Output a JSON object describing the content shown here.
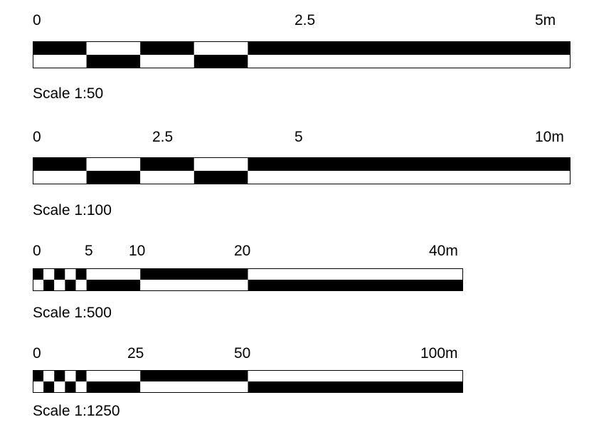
{
  "scales": [
    {
      "caption": "Scale 1:50",
      "ticks": [
        {
          "pos": 0,
          "text": "0"
        },
        {
          "pos": 2.5,
          "text": "2.5"
        },
        {
          "pos": 5,
          "text": "5m"
        }
      ],
      "total": 5,
      "pattern": [
        {
          "from": 0,
          "to": 0.5,
          "top": "black"
        },
        {
          "from": 0.5,
          "to": 1.0,
          "top": "white"
        },
        {
          "from": 1.0,
          "to": 1.5,
          "top": "black"
        },
        {
          "from": 1.5,
          "to": 2.0,
          "top": "white"
        },
        {
          "from": 2.0,
          "to": 2.5,
          "top": "black"
        },
        {
          "from": 2.5,
          "to": 5.0,
          "top": "black"
        }
      ]
    },
    {
      "caption": "Scale 1:100",
      "ticks": [
        {
          "pos": 0,
          "text": "0"
        },
        {
          "pos": 2.5,
          "text": "2.5"
        },
        {
          "pos": 5,
          "text": "5"
        },
        {
          "pos": 10,
          "text": "10m"
        }
      ],
      "total": 10,
      "pattern": [
        {
          "from": 0,
          "to": 1,
          "top": "black"
        },
        {
          "from": 1,
          "to": 2,
          "top": "white"
        },
        {
          "from": 2,
          "to": 3,
          "top": "black"
        },
        {
          "from": 3,
          "to": 4,
          "top": "white"
        },
        {
          "from": 4,
          "to": 5,
          "top": "black"
        },
        {
          "from": 5,
          "to": 10,
          "top": "black"
        }
      ]
    },
    {
      "caption": "Scale 1:500",
      "ticks": [
        {
          "pos": 0,
          "text": "0"
        },
        {
          "pos": 5,
          "text": "5"
        },
        {
          "pos": 10,
          "text": "10"
        },
        {
          "pos": 20,
          "text": "20"
        },
        {
          "pos": 40,
          "text": "40m"
        }
      ],
      "total": 40,
      "pattern": [
        {
          "from": 0,
          "to": 1,
          "top": "black"
        },
        {
          "from": 1,
          "to": 2,
          "top": "white"
        },
        {
          "from": 2,
          "to": 3,
          "top": "black"
        },
        {
          "from": 3,
          "to": 4,
          "top": "white"
        },
        {
          "from": 4,
          "to": 5,
          "top": "black"
        },
        {
          "from": 5,
          "to": 10,
          "top": "white"
        },
        {
          "from": 10,
          "to": 20,
          "top": "black"
        },
        {
          "from": 20,
          "to": 40,
          "top": "white"
        }
      ]
    },
    {
      "caption": "Scale 1:1250",
      "ticks": [
        {
          "pos": 0,
          "text": "0"
        },
        {
          "pos": 25,
          "text": "25"
        },
        {
          "pos": 50,
          "text": "50"
        },
        {
          "pos": 100,
          "text": "100m"
        }
      ],
      "total": 100,
      "pattern": [
        {
          "from": 0,
          "to": 2.5,
          "top": "black"
        },
        {
          "from": 2.5,
          "to": 5,
          "top": "white"
        },
        {
          "from": 5,
          "to": 7.5,
          "top": "black"
        },
        {
          "from": 7.5,
          "to": 10,
          "top": "white"
        },
        {
          "from": 10,
          "to": 12.5,
          "top": "black"
        },
        {
          "from": 12.5,
          "to": 25,
          "top": "white"
        },
        {
          "from": 25,
          "to": 50,
          "top": "black"
        },
        {
          "from": 50,
          "to": 100,
          "top": "white"
        }
      ]
    }
  ]
}
